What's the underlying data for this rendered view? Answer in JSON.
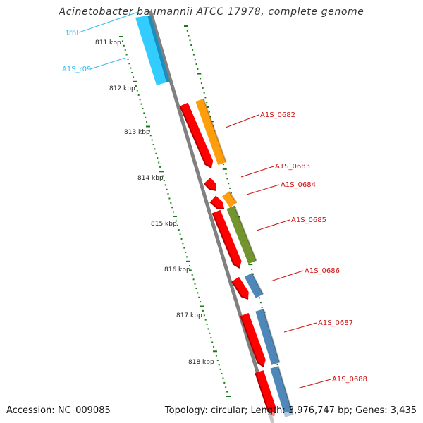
{
  "title": "Acinetobacter baumannii ATCC 17978, complete genome",
  "accession": "Accession: NC_009085",
  "summary": "Topology: circular; Length: 3,976,747 bp; Genes: 3,435",
  "colors": {
    "backbone": "#808080",
    "tick": "#1a7a1a",
    "cds_forward": "#ff0000",
    "label_cds": "#cc1111",
    "label_rna": "#33bbee",
    "rna": "#33ccff",
    "orange": "#ff9900",
    "olive": "#6b8e23",
    "steel": "#4682b4"
  },
  "scale_labels": [
    "811 kbp",
    "812 kbp",
    "813 kbp",
    "814 kbp",
    "815 kbp",
    "816 kbp",
    "817 kbp",
    "818 kbp"
  ],
  "feature_labels": [
    {
      "text": "trnI",
      "kind": "rna"
    },
    {
      "text": "A1S_r09",
      "kind": "rna"
    },
    {
      "text": "A1S_0682",
      "kind": "cds"
    },
    {
      "text": "A1S_0683",
      "kind": "cds"
    },
    {
      "text": "A1S_0684",
      "kind": "cds"
    },
    {
      "text": "A1S_0685",
      "kind": "cds"
    },
    {
      "text": "A1S_0686",
      "kind": "cds"
    },
    {
      "text": "A1S_0687",
      "kind": "cds"
    },
    {
      "text": "A1S_0688",
      "kind": "cds"
    }
  ]
}
